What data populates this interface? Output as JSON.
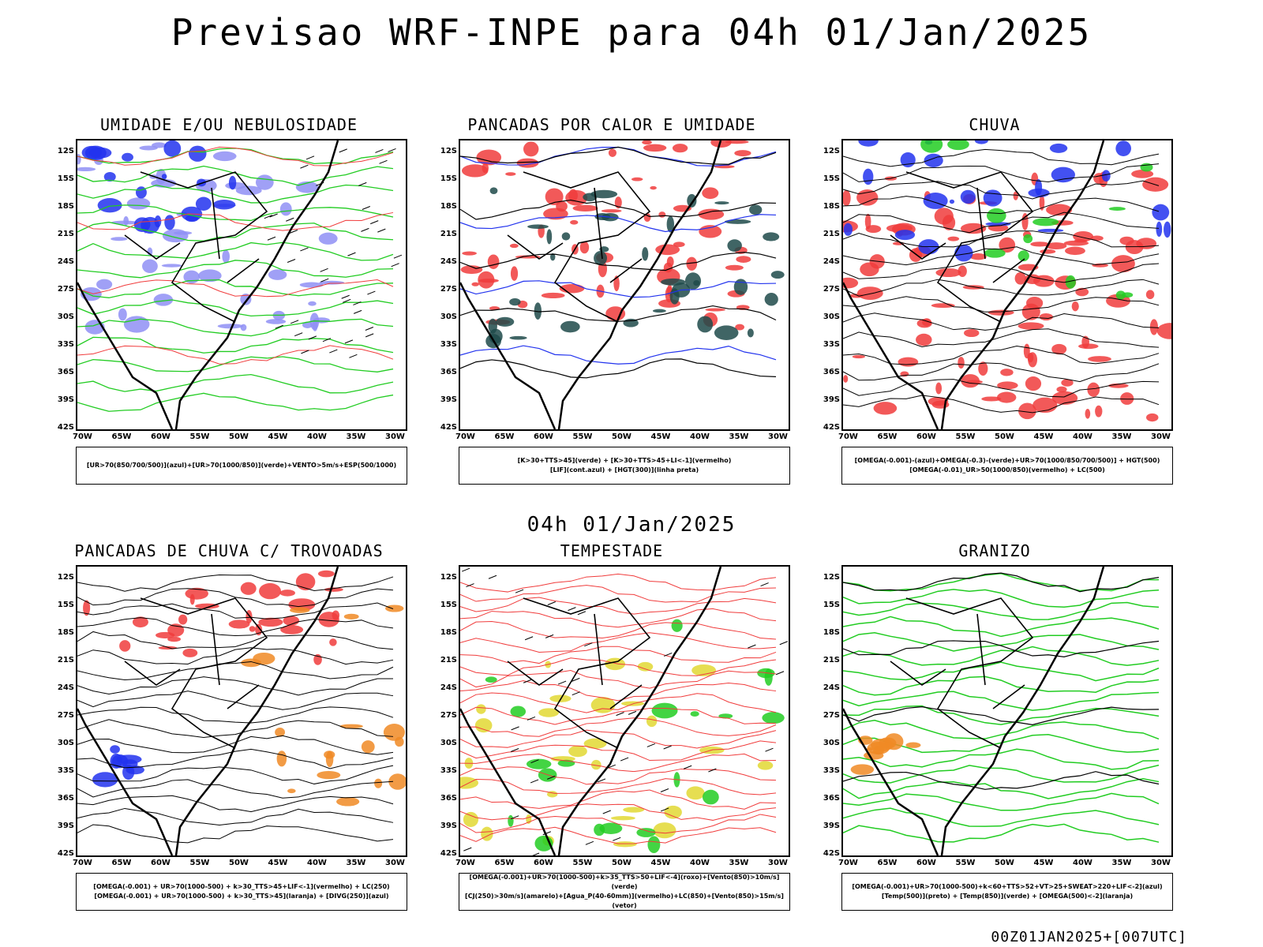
{
  "page": {
    "title": "Previsao WRF-INPE  para 04h 01/Jan/2025",
    "mid_time": "04h 01/Jan/2025",
    "footer": "00Z01JAN2025+[007UTC]"
  },
  "axes": {
    "lat": [
      "12S",
      "15S",
      "18S",
      "21S",
      "24S",
      "27S",
      "30S",
      "33S",
      "36S",
      "39S",
      "42S"
    ],
    "lon": [
      "70W",
      "65W",
      "60W",
      "55W",
      "50W",
      "45W",
      "40W",
      "35W",
      "30W"
    ]
  },
  "panels": [
    {
      "title": "UMIDADE E/OU NEBULOSIDADE",
      "legend": [
        "[UR>70(850/700/500)](azul)+[UR>70(1000/850)](verde)+VENTO>5m/s+ESP(500/1000)"
      ]
    },
    {
      "title": "PANCADAS POR CALOR E UMIDADE",
      "legend": [
        "[K>30+TTS>45](verde) + [K>30+TTS>45+LI<-1](vermelho)",
        "[LIF](cont.azul) + [HGT(300)](linha preta)"
      ]
    },
    {
      "title": "CHUVA",
      "legend": [
        "[OMEGA(-0.001)-(azul)+OMEGA(-0.3)-(verde)+UR>70(1000/850/700/500)] + HGT(500)",
        "[OMEGA(-0.01)_UR>50(1000/850)(vermelho) + LC(500)"
      ]
    },
    {
      "title": "PANCADAS DE CHUVA C/ TROVOADAS",
      "legend": [
        "[OMEGA(-0.001) + UR>70(1000-500) + k>30_TTS>45+LIF<-1](vermelho) + LC(250)",
        "[OMEGA(-0.001) + UR>70(1000-500) + k>30_TTS>45](laranja) + [DIVG(250)](azul)"
      ]
    },
    {
      "title": "TEMPESTADE",
      "legend": [
        "[OMEGA(-0.001)+UR>70(1000-500)+k>35_TTS>50+LIF<-4](roxo)+[Vento(850)>10m/s](verde)",
        "[CJ(250)>30m/s](amarelo)+[Agua_P(40-60mm)](vermelho)+LC(850)+[Vento(850)>15m/s](vetor)"
      ]
    },
    {
      "title": "GRANIZO",
      "legend": [
        "[OMEGA(-0.001)+UR>70(1000-500)+k<60+TTS>52+VT>25+SWEAT>220+LIF<-2](azul)",
        "[Temp(500)](preto) + [Temp(850)](verde) + [OMEGA(500)<-2](laranja)"
      ]
    }
  ],
  "colors": {
    "blue": "#2233ee",
    "lightblue": "#8f8ff5",
    "green": "#22cc22",
    "red": "#f03c3c",
    "darkgreen": "#1f4a4a",
    "orange": "#f08a24",
    "yellow": "#e2d832"
  }
}
